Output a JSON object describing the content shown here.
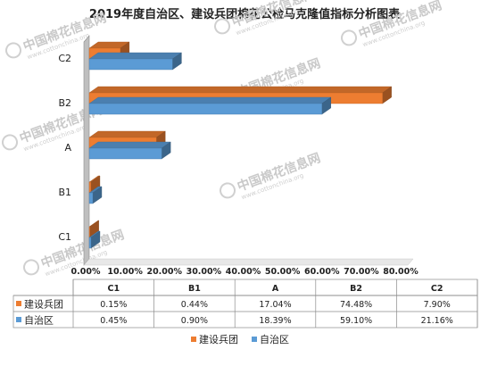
{
  "chart_data": {
    "type": "bar",
    "orientation": "horizontal",
    "title": "2019年度自治区、建设兵团棉花公检马克隆值指标分析图表",
    "categories": [
      "C1",
      "B1",
      "A",
      "B2",
      "C2"
    ],
    "series": [
      {
        "name": "建设兵团",
        "color": "#ed7d31",
        "values": [
          0.15,
          0.44,
          17.04,
          74.48,
          7.9
        ],
        "labels": [
          "0.15%",
          "0.44%",
          "17.04%",
          "74.48%",
          "7.90%"
        ]
      },
      {
        "name": "自治区",
        "color": "#5b9bd5",
        "values": [
          0.45,
          0.9,
          18.39,
          59.1,
          21.16
        ],
        "labels": [
          "0.45%",
          "0.90%",
          "18.39%",
          "59.10%",
          "21.16%"
        ]
      }
    ],
    "xlim": [
      0,
      80
    ],
    "xticks": [
      "0.00%",
      "10.00%",
      "20.00%",
      "30.00%",
      "40.00%",
      "50.00%",
      "60.00%",
      "70.00%",
      "80.00%"
    ],
    "xlabel": "",
    "ylabel": "",
    "grid": false,
    "legend_position": "bottom",
    "data_table": true
  },
  "watermark": {
    "text": "中国棉花信息网",
    "url": "www.cottonchina.org"
  }
}
